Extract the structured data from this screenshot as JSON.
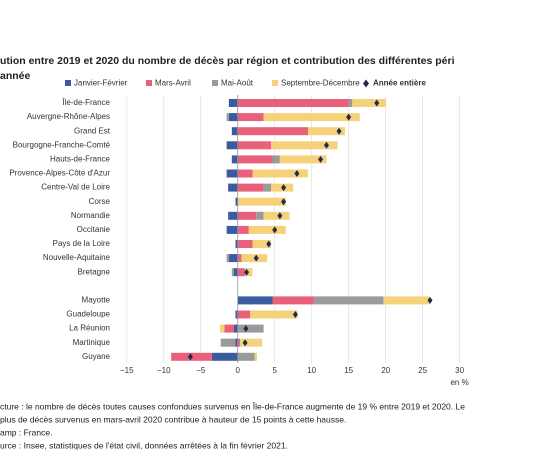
{
  "chart_data": {
    "type": "stacked_bar_h",
    "title": [
      "ution entre 2019 et 2020 du nombre de décès par région et contribution des différentes péri",
      "année"
    ],
    "categories": [
      "Île-de-France",
      "Auvergne-Rhône-Alpes",
      "Grand Est",
      "Bourgogne-Franche-Comté",
      "Hauts-de-France",
      "Provence-Alpes-Côte d'Azur",
      "Centre-Val de Loire",
      "Corse",
      "Normandie",
      "Occitanie",
      "Pays de la Loire",
      "Nouvelle-Aquitaine",
      "Bretagne",
      null,
      "Mayotte",
      "Guadeloupe",
      "La Réunion",
      "Martinique",
      "Guyane"
    ],
    "series": [
      {
        "name": "Janvier-Février",
        "color": "#3a5ba0",
        "values": [
          -1.2,
          -1.2,
          -0.8,
          -1.5,
          -0.8,
          -1.5,
          -1.3,
          -0.3,
          -1.3,
          -1.5,
          -0.3,
          -1.2,
          -0.5,
          null,
          4.7,
          -0.3,
          -0.5,
          -0.3,
          -3.5
        ]
      },
      {
        "name": "Mars-Avril",
        "color": "#e8607a",
        "values": [
          15,
          3.5,
          9.5,
          4.5,
          4.7,
          2,
          3.5,
          0,
          2.5,
          1.5,
          2,
          0.5,
          1,
          null,
          5.6,
          1.7,
          -1.3,
          0.3,
          -5.5
        ]
      },
      {
        "name": "Mai-Août",
        "color": "#9a9a9a",
        "values": [
          0.5,
          -0.3,
          0,
          0,
          1,
          0,
          1,
          0,
          1,
          0,
          0,
          -0.3,
          -0.3,
          null,
          9.4,
          0,
          3.5,
          -2,
          2.3
        ]
      },
      {
        "name": "Septembre-Décembre",
        "color": "#f5d27a",
        "values": [
          4.5,
          13,
          5,
          9,
          6.3,
          7.5,
          3,
          6.5,
          3.5,
          5,
          2.5,
          3.5,
          1,
          null,
          6.3,
          6.4,
          -0.6,
          3,
          0.3
        ]
      }
    ],
    "total": {
      "name": "Année entière",
      "color": "#1f2d4d",
      "values": [
        18.8,
        15,
        13.7,
        12,
        11.2,
        8,
        6.2,
        6.2,
        5.7,
        5,
        4.2,
        2.5,
        1.2,
        null,
        26,
        7.8,
        1.1,
        1,
        -6.4
      ]
    },
    "xlim": [
      -17,
      31
    ],
    "xticks": [
      {
        "value": -15,
        "label": "−15"
      },
      {
        "value": -10,
        "label": "−10"
      },
      {
        "value": -5,
        "label": "−5"
      },
      0,
      5,
      10,
      15,
      20,
      25,
      30
    ],
    "xlabel": "en %",
    "grid": true,
    "notes": [
      "cture : le nombre de décès toutes causes confondues survenus en Île-de-France augmente de 19 % entre 2019 et 2020. Le",
      "plus de décès survenus en mars-avril 2020 contribue à hauteur de 15 points à cette hausse.",
      "amp : France.",
      "urce : Insee, statistiques de l'état civil, données arrêtées à la fin février 2021."
    ]
  }
}
